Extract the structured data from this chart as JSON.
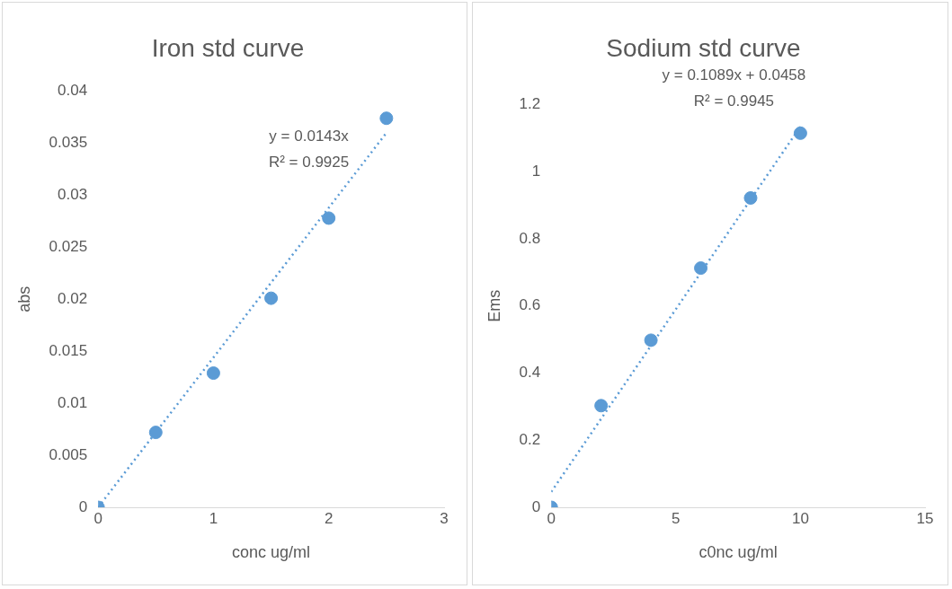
{
  "chart_data": [
    {
      "type": "scatter",
      "title": "Iron std curve",
      "xlabel": "conc ug/ml",
      "ylabel": "abs",
      "xlim": [
        0,
        3
      ],
      "xticks": [
        0,
        1,
        2,
        3
      ],
      "ylim": [
        0,
        0.04
      ],
      "yticks": [
        0,
        0.005,
        0.01,
        0.015,
        0.02,
        0.025,
        0.03,
        0.035,
        0.04
      ],
      "grid": false,
      "legend": false,
      "marker": "circle",
      "annotations": [
        "y = 0.0143x",
        "R² = 0.9925"
      ],
      "series": [
        {
          "color": "#5b9bd5",
          "x": [
            0,
            0.5,
            1,
            1.5,
            2,
            2.5
          ],
          "values": [
            0,
            0.0072,
            0.0129,
            0.0201,
            0.0278,
            0.0374
          ]
        },
        {
          "type": "line",
          "color": "#5b9bd5",
          "line_style": "dotted",
          "marker": "none",
          "x": [
            0,
            2.5
          ],
          "values": [
            0,
            0.036
          ]
        }
      ]
    },
    {
      "type": "scatter",
      "title": "Sodium std curve",
      "xlabel": "c0nc ug/ml",
      "ylabel": "Ems",
      "xlim": [
        0,
        15
      ],
      "xticks": [
        0,
        5,
        10,
        15
      ],
      "ylim": [
        0,
        1.2
      ],
      "yticks": [
        0,
        0.2,
        0.4,
        0.6,
        0.8,
        1,
        1.2
      ],
      "grid": false,
      "legend": false,
      "marker": "circle",
      "annotations": [
        "y = 0.1089x + 0.0458",
        "R² = 0.9945"
      ],
      "series": [
        {
          "color": "#5b9bd5",
          "x": [
            0,
            2,
            4,
            6,
            8,
            10
          ],
          "values": [
            0,
            0.303,
            0.498,
            0.713,
            0.922,
            1.115
          ]
        },
        {
          "type": "line",
          "color": "#5b9bd5",
          "line_style": "dotted",
          "marker": "none",
          "x": [
            0,
            10
          ],
          "values": [
            0.046,
            1.135
          ]
        }
      ]
    }
  ]
}
